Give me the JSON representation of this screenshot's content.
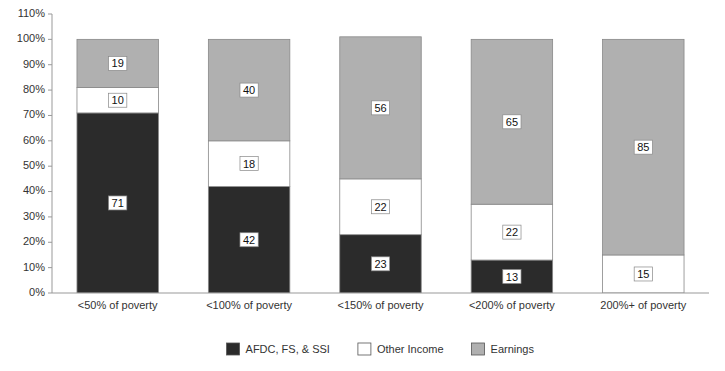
{
  "chart_data": {
    "type": "bar",
    "stacked": true,
    "data_labels": true,
    "grid": false,
    "legend": "bottom",
    "categories": [
      "<50% of poverty",
      "<100% of poverty",
      "<150% of poverty",
      "<200% of poverty",
      "200%+ of poverty"
    ],
    "series": [
      {
        "name": "AFDC, FS, & SSI",
        "color": "#2b2b2b",
        "values": [
          71,
          42,
          23,
          13,
          0
        ]
      },
      {
        "name": "Other Income",
        "color": "#ffffff",
        "values": [
          10,
          18,
          22,
          22,
          15
        ]
      },
      {
        "name": "Earnings",
        "color": "#b0b0b0",
        "values": [
          19,
          40,
          56,
          65,
          85
        ]
      }
    ],
    "ylim": [
      0,
      110
    ],
    "yticks": [
      {
        "value": 0,
        "label": "0%"
      },
      {
        "value": 10,
        "label": "10%"
      },
      {
        "value": 20,
        "label": "20%"
      },
      {
        "value": 30,
        "label": "30%"
      },
      {
        "value": 40,
        "label": "40%"
      },
      {
        "value": 50,
        "label": "50%"
      },
      {
        "value": 60,
        "label": "60%"
      },
      {
        "value": 70,
        "label": "70%"
      },
      {
        "value": 80,
        "label": "80%"
      },
      {
        "value": 90,
        "label": "90%"
      },
      {
        "value": 100,
        "label": "100%"
      },
      {
        "value": 110,
        "label": "110%"
      }
    ]
  }
}
